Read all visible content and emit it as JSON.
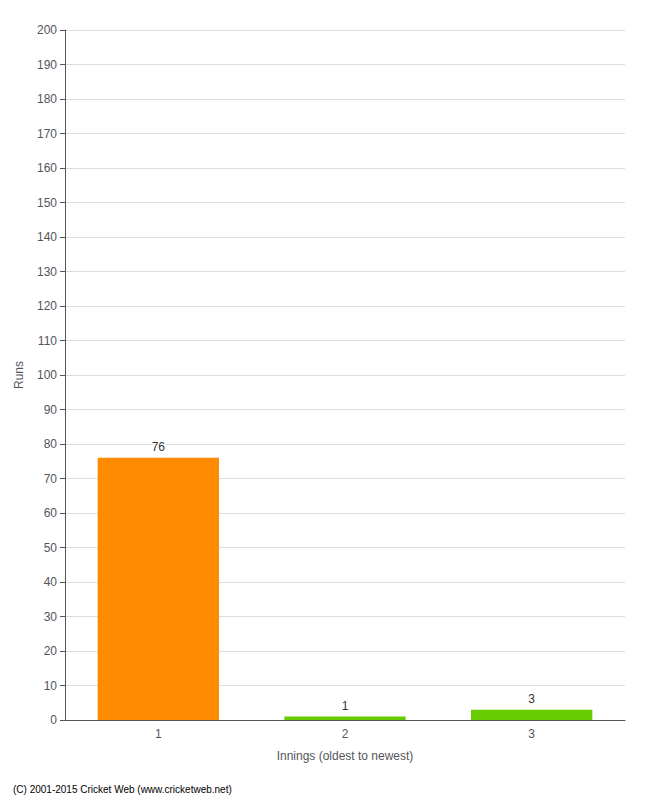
{
  "chart_data": {
    "type": "bar",
    "categories": [
      "1",
      "2",
      "3"
    ],
    "values": [
      76,
      1,
      3
    ],
    "colors": [
      "#FF8C00",
      "#66CC00",
      "#66CC00"
    ],
    "xlabel": "Innings (oldest to newest)",
    "ylabel": "Runs",
    "ylim": [
      0,
      200
    ],
    "yticks": [
      0,
      10,
      20,
      30,
      40,
      50,
      60,
      70,
      80,
      90,
      100,
      110,
      120,
      130,
      140,
      150,
      160,
      170,
      180,
      190,
      200
    ],
    "grid": true,
    "data_labels": true,
    "annotations": [
      "(C) 2001-2015 Cricket Web (www.cricketweb.net)"
    ]
  }
}
